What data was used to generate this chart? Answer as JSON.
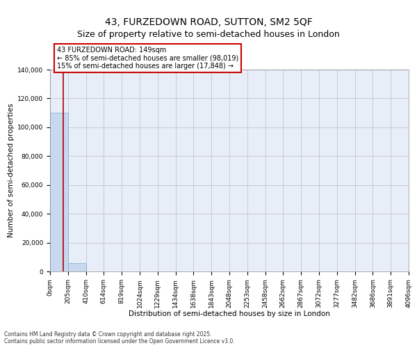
{
  "title": "43, FURZEDOWN ROAD, SUTTON, SM2 5QF",
  "subtitle": "Size of property relative to semi-detached houses in London",
  "xlabel": "Distribution of semi-detached houses by size in London",
  "ylabel": "Number of semi-detached properties",
  "property_size": 149,
  "annotation_text": "43 FURZEDOWN ROAD: 149sqm\n← 85% of semi-detached houses are smaller (98,019)\n15% of semi-detached houses are larger (17,848) →",
  "bin_edges": [
    0,
    205,
    410,
    614,
    819,
    1024,
    1229,
    1434,
    1638,
    1843,
    2048,
    2253,
    2458,
    2662,
    2867,
    3072,
    3277,
    3482,
    3686,
    3891,
    4096
  ],
  "bar_heights": [
    110000,
    5800,
    200,
    50,
    20,
    10,
    5,
    3,
    2,
    1,
    1,
    1,
    1,
    1,
    1,
    1,
    1,
    1,
    1,
    1
  ],
  "bar_color": "#c8d8ee",
  "bar_edge_color": "#7aaacf",
  "line_color": "#aa0000",
  "grid_color": "#c8c8d8",
  "ylim": [
    0,
    140000
  ],
  "yticks": [
    0,
    20000,
    40000,
    60000,
    80000,
    100000,
    120000,
    140000
  ],
  "background_color": "#e8eef8",
  "footer_text": "Contains HM Land Registry data © Crown copyright and database right 2025.\nContains public sector information licensed under the Open Government Licence v3.0.",
  "title_fontsize": 10,
  "subtitle_fontsize": 9,
  "axis_label_fontsize": 7.5,
  "tick_fontsize": 6.5
}
